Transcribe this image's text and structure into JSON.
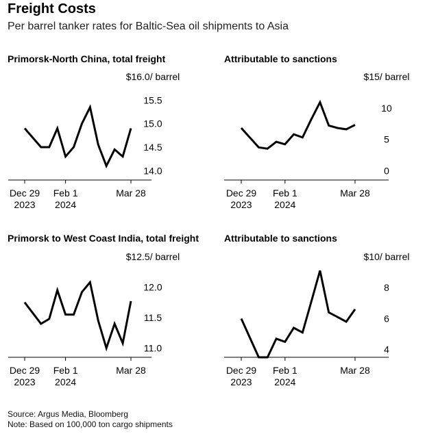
{
  "header": {
    "title": "Freight Costs",
    "subtitle": "Per barrel tanker rates for Baltic-Sea oil shipments to Asia"
  },
  "footer": {
    "source": "Source: Argus Media, Bloomberg",
    "note": "Note: Based on 100,000 ton cargo shipments"
  },
  "chart_data": [
    {
      "type": "line",
      "title": "Primorsk-North China, total freight",
      "xticks": [
        {
          "x": 0,
          "line1": "Dec 29",
          "line2": "2023"
        },
        {
          "x": 5,
          "line1": "Feb 1",
          "line2": "2024"
        },
        {
          "x": 13,
          "line1": "Mar 28",
          "line2": ""
        }
      ],
      "yticks": [
        {
          "v": 14.0,
          "label": "14.0"
        },
        {
          "v": 14.5,
          "label": "14.5"
        },
        {
          "v": 15.0,
          "label": "15.0"
        },
        {
          "v": 15.5,
          "label": "15.5"
        },
        {
          "v": 16.0,
          "label": "$16.0/ barrel"
        }
      ],
      "ylim": [
        13.8,
        16.0
      ],
      "xlim": [
        0,
        13
      ],
      "x": [
        0,
        2,
        3,
        4,
        5,
        6,
        7,
        8,
        9,
        10,
        11,
        12,
        13
      ],
      "values": [
        14.9,
        14.5,
        14.5,
        14.9,
        14.3,
        14.5,
        15.0,
        15.35,
        14.55,
        14.1,
        14.45,
        14.3,
        14.9
      ]
    },
    {
      "type": "line",
      "title": "Attributable to sanctions",
      "xticks": [
        {
          "x": 0,
          "line1": "Dec 29",
          "line2": "2023"
        },
        {
          "x": 5,
          "line1": "Feb 1",
          "line2": "2024"
        },
        {
          "x": 13,
          "line1": "Mar 28",
          "line2": ""
        }
      ],
      "yticks": [
        {
          "v": 0,
          "label": "0"
        },
        {
          "v": 5,
          "label": "5"
        },
        {
          "v": 10,
          "label": "10"
        },
        {
          "v": 15,
          "label": "$15/ barrel"
        }
      ],
      "ylim": [
        -1.5,
        15
      ],
      "xlim": [
        0,
        13
      ],
      "x": [
        0,
        2,
        3,
        4,
        5,
        6,
        7,
        8,
        9,
        10,
        11,
        12,
        13
      ],
      "values": [
        6.8,
        3.7,
        3.5,
        4.6,
        4.2,
        5.8,
        5.3,
        8.2,
        10.9,
        7.2,
        6.8,
        6.6,
        7.3
      ]
    },
    {
      "type": "line",
      "title": "Primorsk to West Coast India, total freight",
      "xticks": [
        {
          "x": 0,
          "line1": "Dec 29",
          "line2": "2023"
        },
        {
          "x": 5,
          "line1": "Feb 1",
          "line2": "2024"
        },
        {
          "x": 13,
          "line1": "Mar 28",
          "line2": ""
        }
      ],
      "yticks": [
        {
          "v": 11.0,
          "label": "11.0"
        },
        {
          "v": 11.5,
          "label": "11.5"
        },
        {
          "v": 12.0,
          "label": "12.0"
        },
        {
          "v": 12.5,
          "label": "$12.5/ barrel"
        }
      ],
      "ylim": [
        10.85,
        12.5
      ],
      "xlim": [
        0,
        13
      ],
      "x": [
        0,
        2,
        3,
        4,
        5,
        6,
        7,
        8,
        9,
        10,
        11,
        12,
        13
      ],
      "values": [
        11.75,
        11.4,
        11.48,
        11.95,
        11.55,
        11.55,
        11.92,
        12.08,
        11.45,
        11.0,
        11.4,
        11.08,
        11.77
      ]
    },
    {
      "type": "line",
      "title": "Attributable to sanctions",
      "xticks": [
        {
          "x": 0,
          "line1": "Dec 29",
          "line2": "2023"
        },
        {
          "x": 5,
          "line1": "Feb 1",
          "line2": "2024"
        },
        {
          "x": 13,
          "line1": "Mar 28",
          "line2": ""
        }
      ],
      "yticks": [
        {
          "v": 4,
          "label": "4"
        },
        {
          "v": 6,
          "label": "6"
        },
        {
          "v": 8,
          "label": "8"
        },
        {
          "v": 10,
          "label": "$10/ barrel"
        }
      ],
      "ylim": [
        3.5,
        10
      ],
      "xlim": [
        0,
        13
      ],
      "x": [
        0,
        2,
        3,
        4,
        5,
        6,
        7,
        8,
        9,
        10,
        11,
        12,
        13
      ],
      "values": [
        6.0,
        3.5,
        3.5,
        4.7,
        4.5,
        5.4,
        5.1,
        7.1,
        9.1,
        6.4,
        6.1,
        5.8,
        6.6
      ]
    }
  ]
}
